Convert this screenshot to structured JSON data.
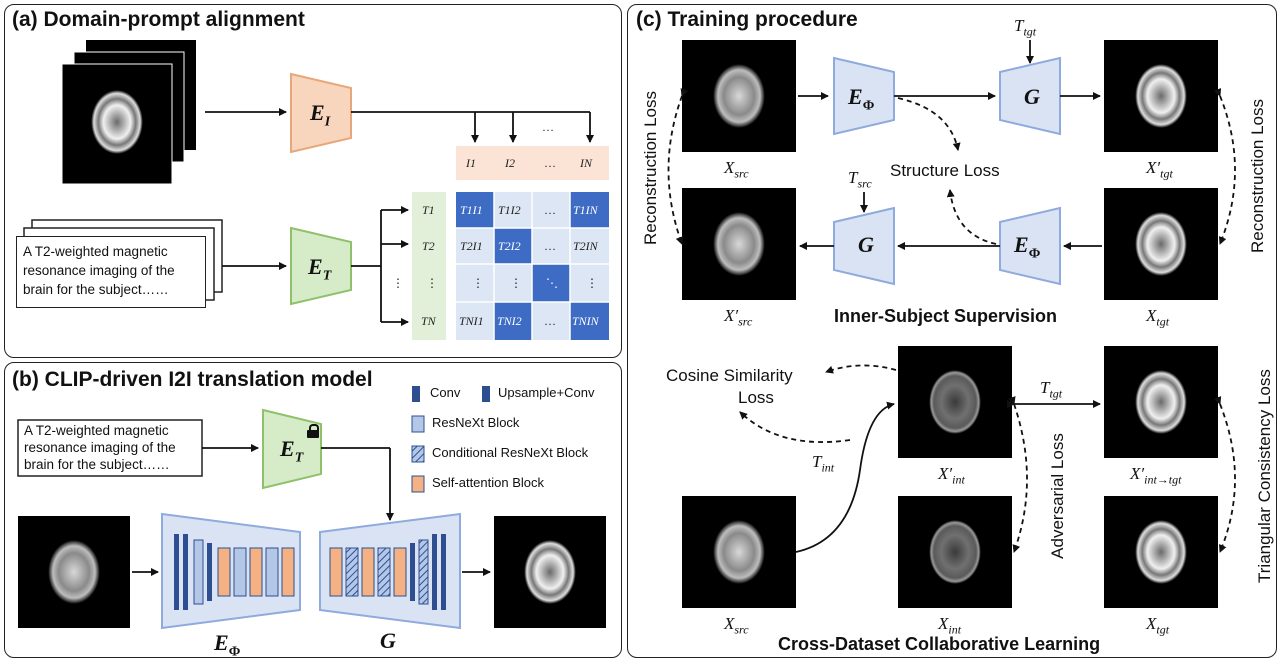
{
  "panel_a": {
    "title": "(a) Domain-prompt alignment",
    "image_encoder": "E",
    "image_encoder_sub": "I",
    "text_encoder": "E",
    "text_encoder_sub": "T",
    "prompt_text": [
      "A T2-weighted magnetic",
      "resonance imaging of the",
      "brain for the subject……"
    ],
    "dots": "…",
    "vdots": "⋮",
    "ddots": "⋱",
    "image_header": [
      "I1",
      "I2",
      "…",
      "IN"
    ],
    "text_column": [
      "T1",
      "T2",
      "⋮",
      "TN"
    ],
    "matrix": [
      [
        "T1I1",
        "T1I2",
        "…",
        "T1IN"
      ],
      [
        "T2I1",
        "T2I2",
        "…",
        "T2IN"
      ],
      [
        "⋮",
        "⋮",
        "⋱",
        "⋮"
      ],
      [
        "TNI1",
        "TNI2",
        "…",
        "TNIN"
      ]
    ],
    "colors": {
      "image_encoder": "#f8d5bd",
      "text_encoder": "#d6ecc8",
      "matrix_light": "#dde6f4",
      "matrix_dark": "#3e6cc4",
      "header_bg": "#fbe3d6"
    }
  },
  "panel_b": {
    "title": "(b) CLIP-driven I2I translation model",
    "prompt_text": [
      "A T2-weighted magnetic",
      "resonance imaging of the",
      "brain for the subject……"
    ],
    "text_encoder": "E",
    "text_encoder_sub": "T",
    "encoder_label": "E",
    "encoder_sub": "Φ",
    "generator_label": "G",
    "lock_icon": "lock-icon",
    "legend": [
      "Conv",
      "Upsample+Conv",
      "ResNeXt Block",
      "Conditional ResNeXt Block",
      "Self-attention Block"
    ],
    "colors": {
      "conv": "#2d4f91",
      "resnext": "#b4c7e7",
      "self_attention": "#f4b183",
      "trapezoid": "#dae3f3"
    }
  },
  "panel_c": {
    "title": "(c) Training procedure",
    "inner_title": "Inner-Subject Supervision",
    "cross_title": "Cross-Dataset Collaborative Learning",
    "encoder": "E",
    "encoder_sub": "Φ",
    "generator": "G",
    "structure_loss": "Structure Loss",
    "reconstruction_loss": "Reconstruction Loss",
    "cosine_loss": [
      "Cosine Similarity",
      "Loss"
    ],
    "adversarial_loss": "Adversarial Loss",
    "triangular_loss": "Triangular Consistency Loss",
    "t_tgt": "T",
    "t_tgt_sub": "tgt",
    "t_src": "T",
    "t_src_sub": "src",
    "t_int": "T",
    "t_int_sub": "int",
    "labels": {
      "x_src": [
        "X",
        "src"
      ],
      "x_tgt_prime": [
        "X′",
        "tgt"
      ],
      "x_src_prime": [
        "X′",
        "src"
      ],
      "x_tgt": [
        "X",
        "tgt"
      ],
      "x_int_prime": [
        "X′",
        "int"
      ],
      "x_int_to_tgt": [
        "X′",
        "int→tgt"
      ],
      "x_int": [
        "X",
        "int"
      ],
      "x_src2": [
        "X",
        "src"
      ],
      "x_tgt2": [
        "X",
        "tgt"
      ]
    }
  }
}
